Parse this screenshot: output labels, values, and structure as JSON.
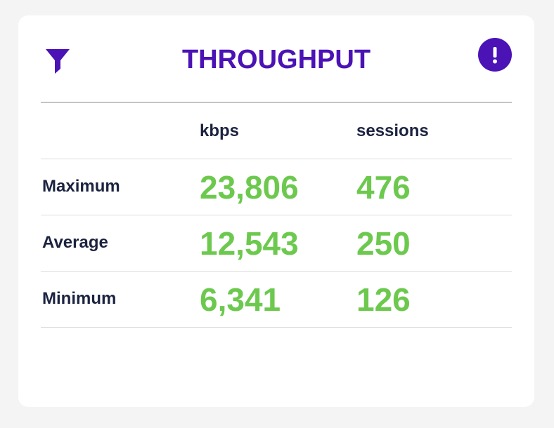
{
  "header": {
    "title": "THROUGHPUT"
  },
  "table": {
    "columns": [
      "kbps",
      "sessions"
    ],
    "rows": [
      {
        "label": "Maximum",
        "cells": [
          "23,806",
          "476"
        ]
      },
      {
        "label": "Average",
        "cells": [
          "12,543",
          "250"
        ]
      },
      {
        "label": "Minimum",
        "cells": [
          "6,341",
          "126"
        ]
      }
    ]
  }
}
